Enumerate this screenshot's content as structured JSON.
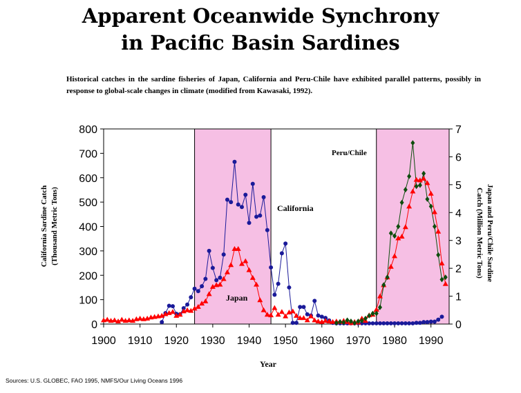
{
  "title_line1": "Apparent Oceanwide Synchrony",
  "title_line2": "in Pacific Basin Sardines",
  "subtitle": "Historical catches in the sardine fisheries of Japan, California and Peru-Chile have exhibited parallel patterns, possibly in response to global-scale changes in climate (modified from Kawasaki, 1992).",
  "sources": "Sources: U.S. GLOBEC, FAO 1995, NMFS/Our Living Oceans 1996",
  "chart_data": {
    "type": "line",
    "xlabel": "Year",
    "ylabel_left_line1": "California Sardine Catch",
    "ylabel_left_line2": "(Thousand Metric Tons)",
    "ylabel_right_line1": "Japan and Peru/Chile Sardine",
    "ylabel_right_line2": "Catch (Million Metric Tons)",
    "xlim": [
      1900,
      1995
    ],
    "ylim_left": [
      0,
      800
    ],
    "ylim_right": [
      0,
      7
    ],
    "x_ticks": [
      1900,
      1910,
      1920,
      1930,
      1940,
      1950,
      1960,
      1970,
      1980,
      1990
    ],
    "y_ticks_left": [
      0,
      100,
      200,
      300,
      400,
      500,
      600,
      700,
      800
    ],
    "y_ticks_right": [
      0,
      1,
      2,
      3,
      4,
      5,
      6,
      7
    ],
    "shaded_periods": [
      [
        1925,
        1946
      ],
      [
        1975,
        1995
      ]
    ],
    "shade_color": "#f6bfe4",
    "series": [
      {
        "name": "California",
        "axis": "left",
        "color": "#1a1a99",
        "marker": "circle",
        "x": [
          1916,
          1917,
          1918,
          1919,
          1920,
          1921,
          1922,
          1923,
          1924,
          1925,
          1926,
          1927,
          1928,
          1929,
          1930,
          1931,
          1932,
          1933,
          1934,
          1935,
          1936,
          1937,
          1938,
          1939,
          1940,
          1941,
          1942,
          1943,
          1944,
          1945,
          1946,
          1947,
          1948,
          1949,
          1950,
          1951,
          1952,
          1953,
          1954,
          1955,
          1956,
          1957,
          1958,
          1959,
          1960,
          1961,
          1962,
          1963,
          1964,
          1965,
          1966,
          1967,
          1968,
          1969,
          1970,
          1971,
          1972,
          1973,
          1974,
          1975,
          1976,
          1977,
          1978,
          1979,
          1980,
          1981,
          1982,
          1983,
          1984,
          1985,
          1986,
          1987,
          1988,
          1989,
          1990,
          1991,
          1992,
          1993
        ],
        "y": [
          8,
          45,
          75,
          73,
          42,
          40,
          65,
          80,
          110,
          145,
          135,
          155,
          185,
          300,
          230,
          180,
          190,
          285,
          510,
          500,
          665,
          490,
          480,
          530,
          415,
          575,
          440,
          445,
          520,
          385,
          232,
          120,
          165,
          290,
          330,
          150,
          5,
          5,
          70,
          70,
          40,
          35,
          95,
          35,
          30,
          25,
          15,
          5,
          3,
          3,
          3,
          3,
          3,
          3,
          3,
          3,
          3,
          3,
          3,
          3,
          3,
          3,
          3,
          3,
          3,
          3,
          3,
          3,
          3,
          3,
          5,
          5,
          8,
          8,
          10,
          10,
          18,
          30
        ]
      },
      {
        "name": "Japan",
        "axis": "right",
        "color": "#ff0000",
        "marker": "triangle",
        "x": [
          1900,
          1901,
          1902,
          1903,
          1904,
          1905,
          1906,
          1907,
          1908,
          1909,
          1910,
          1911,
          1912,
          1913,
          1914,
          1915,
          1916,
          1917,
          1918,
          1919,
          1920,
          1921,
          1922,
          1923,
          1924,
          1925,
          1926,
          1927,
          1928,
          1929,
          1930,
          1931,
          1932,
          1933,
          1934,
          1935,
          1936,
          1937,
          1938,
          1939,
          1940,
          1941,
          1942,
          1943,
          1944,
          1945,
          1946,
          1947,
          1948,
          1949,
          1950,
          1951,
          1952,
          1953,
          1954,
          1955,
          1956,
          1957,
          1958,
          1959,
          1960,
          1961,
          1962,
          1963,
          1964,
          1965,
          1966,
          1967,
          1968,
          1969,
          1970,
          1971,
          1972,
          1973,
          1974,
          1975,
          1976,
          1977,
          1978,
          1979,
          1980,
          1981,
          1982,
          1983,
          1984,
          1985,
          1986,
          1987,
          1988,
          1989,
          1990,
          1991,
          1992,
          1993,
          1994
        ],
        "y": [
          0.14,
          0.16,
          0.12,
          0.14,
          0.1,
          0.16,
          0.12,
          0.14,
          0.12,
          0.18,
          0.2,
          0.18,
          0.2,
          0.24,
          0.26,
          0.28,
          0.3,
          0.36,
          0.4,
          0.44,
          0.3,
          0.34,
          0.46,
          0.5,
          0.48,
          0.56,
          0.62,
          0.74,
          0.82,
          1.08,
          1.34,
          1.4,
          1.42,
          1.62,
          1.86,
          2.12,
          2.7,
          2.7,
          2.16,
          2.26,
          1.94,
          1.66,
          1.42,
          0.86,
          0.5,
          0.34,
          0.32,
          0.58,
          0.34,
          0.44,
          0.28,
          0.42,
          0.46,
          0.3,
          0.22,
          0.22,
          0.14,
          0.28,
          0.14,
          0.1,
          0.08,
          0.12,
          0.1,
          0.08,
          0.1,
          0.08,
          0.12,
          0.08,
          0.04,
          0.08,
          0.06,
          0.2,
          0.12,
          0.32,
          0.34,
          0.52,
          1.0,
          1.4,
          1.68,
          2.06,
          2.44,
          3.08,
          3.14,
          3.48,
          4.22,
          4.76,
          5.18,
          5.16,
          5.22,
          5.06,
          4.68,
          4.02,
          3.32,
          2.18,
          1.44
        ]
      },
      {
        "name": "Peru/Chile",
        "axis": "right",
        "color": "#0d4d0d",
        "marker": "diamond",
        "x": [
          1964,
          1965,
          1966,
          1967,
          1968,
          1969,
          1970,
          1971,
          1972,
          1973,
          1974,
          1975,
          1976,
          1977,
          1978,
          1979,
          1980,
          1981,
          1982,
          1983,
          1984,
          1985,
          1986,
          1987,
          1988,
          1989,
          1990,
          1991,
          1992,
          1993,
          1994
        ],
        "y": [
          0.04,
          0.08,
          0.06,
          0.14,
          0.1,
          0.04,
          0.1,
          0.12,
          0.2,
          0.3,
          0.38,
          0.38,
          0.6,
          1.4,
          1.68,
          3.26,
          3.16,
          3.5,
          4.36,
          4.82,
          5.3,
          6.5,
          4.94,
          4.98,
          5.4,
          4.48,
          4.22,
          3.5,
          2.48,
          1.6,
          1.68
        ]
      }
    ],
    "annotations": [
      {
        "text": "Peru/Chile",
        "x": 1978,
        "y_right": 6.1,
        "color": "#000000"
      },
      {
        "text": "California",
        "x": 1952,
        "y_left": 480,
        "color": "#1a1a99"
      },
      {
        "text": "Japan",
        "x": 1937,
        "y_left": 100,
        "color": "#ff0000"
      }
    ]
  }
}
